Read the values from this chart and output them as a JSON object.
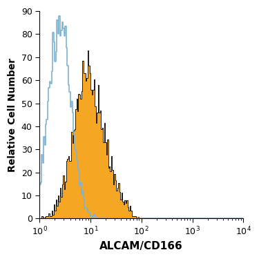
{
  "title": "",
  "xlabel": "ALCAM/CD166",
  "ylabel": "Relative Cell Number",
  "xlim_log": [
    1.0,
    10000.0
  ],
  "ylim": [
    0,
    90
  ],
  "yticks": [
    0,
    10,
    20,
    30,
    40,
    50,
    60,
    70,
    80,
    90
  ],
  "blue_color": "#7fb3d3",
  "orange_color": "#f5a623",
  "orange_edge_color": "#1a1a1a",
  "background_color": "#ffffff",
  "blue_peak_y": 88,
  "orange_peak_y": 73
}
